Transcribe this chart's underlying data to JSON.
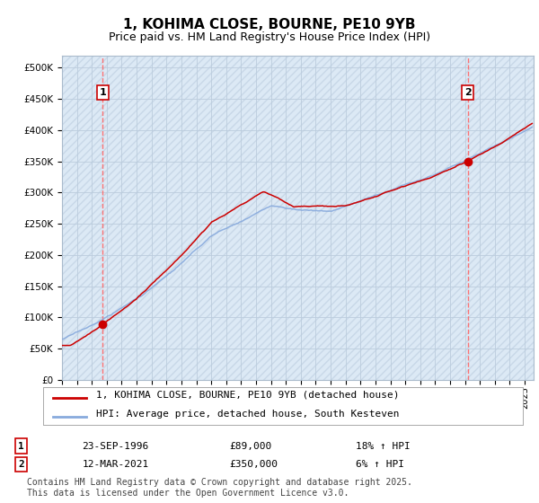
{
  "title": "1, KOHIMA CLOSE, BOURNE, PE10 9YB",
  "subtitle": "Price paid vs. HM Land Registry's House Price Index (HPI)",
  "ylim": [
    0,
    520000
  ],
  "yticks": [
    0,
    50000,
    100000,
    150000,
    200000,
    250000,
    300000,
    350000,
    400000,
    450000,
    500000
  ],
  "ytick_labels": [
    "£0",
    "£50K",
    "£100K",
    "£150K",
    "£200K",
    "£250K",
    "£300K",
    "£350K",
    "£400K",
    "£450K",
    "£500K"
  ],
  "x_start_year": 1994,
  "x_end_year": 2025,
  "sale1_year": 1996.72,
  "sale1_value": 89000,
  "sale2_year": 2021.19,
  "sale2_value": 350000,
  "sale1_date": "23-SEP-1996",
  "sale1_price": "£89,000",
  "sale1_hpi": "18% ↑ HPI",
  "sale2_date": "12-MAR-2021",
  "sale2_price": "£350,000",
  "sale2_hpi": "6% ↑ HPI",
  "line_color_price": "#cc0000",
  "line_color_hpi": "#88aadd",
  "legend_label_price": "1, KOHIMA CLOSE, BOURNE, PE10 9YB (detached house)",
  "legend_label_hpi": "HPI: Average price, detached house, South Kesteven",
  "footnote1": "Contains HM Land Registry data © Crown copyright and database right 2025.",
  "footnote2": "This data is licensed under the Open Government Licence v3.0.",
  "bg_color": "#ffffff",
  "plot_bg": "#dce9f5",
  "hatch_bg": "#c8d8e8",
  "grid_color": "#bbccdd",
  "sale_vline_color": "#ff6666",
  "title_fontsize": 11,
  "subtitle_fontsize": 9,
  "tick_fontsize": 7.5,
  "legend_fontsize": 8,
  "table_fontsize": 8,
  "footnote_fontsize": 7
}
